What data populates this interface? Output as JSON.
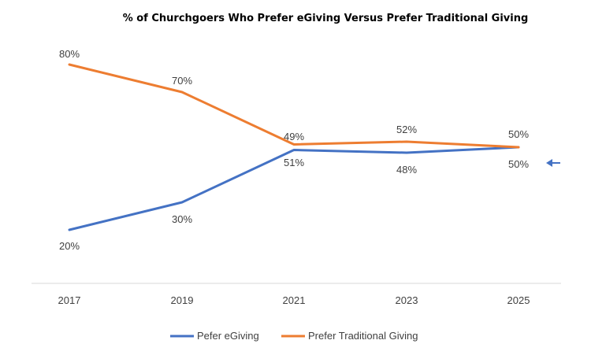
{
  "chart_data": {
    "type": "line",
    "title": "% of Churchgoers Who Prefer eGiving Versus Prefer Traditional Giving",
    "xlabel": "",
    "ylabel": "",
    "categories": [
      "2017",
      "2019",
      "2021",
      "2023",
      "2025"
    ],
    "ylim": [
      0,
      100
    ],
    "grid": false,
    "legend_position": "bottom",
    "series": [
      {
        "name": "Pefer eGiving",
        "color": "#4472C4",
        "values": [
          20,
          30,
          49,
          48,
          50
        ],
        "labels": [
          "20%",
          "30%",
          "49%",
          "48%",
          "50%"
        ]
      },
      {
        "name": "Prefer Traditional Giving",
        "color": "#ED7D31",
        "values": [
          80,
          70,
          51,
          52,
          50
        ],
        "labels": [
          "80%",
          "70%",
          "51%",
          "52%",
          "50%"
        ]
      }
    ],
    "annotation": {
      "type": "arrow",
      "color": "#4472C4",
      "points_to": "series-end"
    }
  }
}
